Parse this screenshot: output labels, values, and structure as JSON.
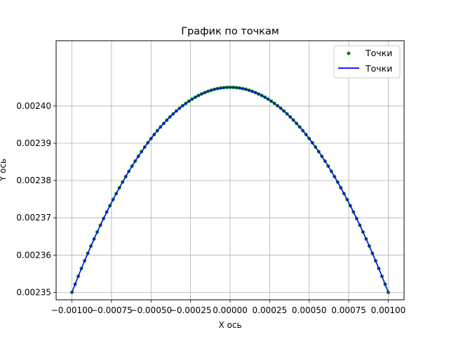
{
  "chart_data": {
    "type": "line",
    "title": "График по точкам",
    "xlabel": "X ось",
    "ylabel": "Y ось",
    "xlim": [
      -0.0011,
      0.0011
    ],
    "ylim": [
      0.002348,
      0.0024175
    ],
    "grid": true,
    "legend_position": "top-right",
    "x_ticks": [
      -0.001,
      -0.00075,
      -0.0005,
      -0.00025,
      0.0,
      0.00025,
      0.0005,
      0.00075,
      0.001
    ],
    "x_tick_labels": [
      "−0.00100",
      "−0.00075",
      "−0.00050",
      "−0.00025",
      "0.00000",
      "0.00025",
      "0.00050",
      "0.00075",
      "0.00100"
    ],
    "y_ticks": [
      0.00235,
      0.00236,
      0.00237,
      0.00238,
      0.00239,
      0.0024
    ],
    "y_tick_labels": [
      "0.00235",
      "0.00236",
      "0.00237",
      "0.00238",
      "0.00239",
      "0.00240"
    ],
    "curve": {
      "description_formula": "y = 0.002405 - 55 * x^2",
      "x_min": -0.001,
      "x_max": 0.001,
      "vertex_y": 0.002405,
      "coefficient": 55,
      "point_count": 101
    },
    "series": [
      {
        "name": "Точки",
        "style": "points",
        "color": "#008000"
      },
      {
        "name": "Точки",
        "style": "line",
        "color": "#0000ff"
      }
    ],
    "colors": {
      "grid": "#b0b0b0",
      "axes": "#000000",
      "background": "#ffffff"
    }
  }
}
